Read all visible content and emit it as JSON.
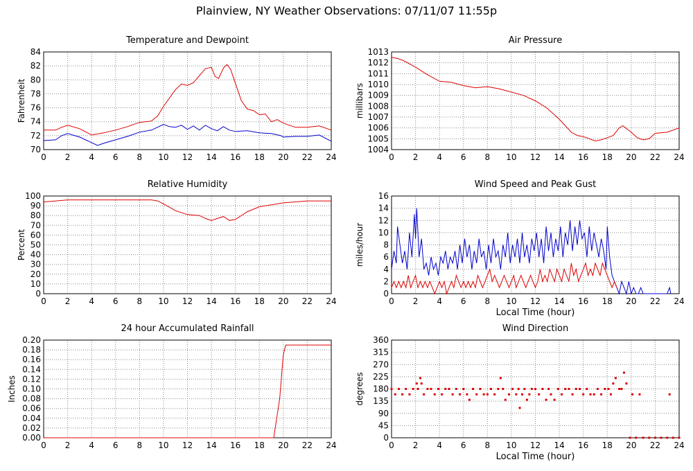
{
  "title": "Plainview, NY Weather Observations: 07/11/07 11:55p",
  "colors": {
    "red": "#dd0000",
    "blue": "#0000cc",
    "grid": "#888888",
    "frame": "#000000"
  },
  "chart_data": [
    {
      "id": "temp",
      "type": "line",
      "title": "Temperature and Dewpoint",
      "xlabel": "",
      "ylabel": "Fahrenheit",
      "xlim": [
        0,
        24
      ],
      "ylim": [
        70,
        84
      ],
      "xticks": [
        0,
        2,
        4,
        6,
        8,
        10,
        12,
        14,
        16,
        18,
        20,
        22,
        24
      ],
      "yticks": [
        70,
        72,
        74,
        76,
        78,
        80,
        82,
        84
      ],
      "grid": true,
      "series": [
        {
          "color": "red",
          "style": "line",
          "x": [
            0,
            1,
            1.5,
            2,
            3,
            4,
            5,
            6,
            7,
            8,
            9,
            9.5,
            10,
            11,
            11.5,
            12,
            12.5,
            13,
            13.5,
            14,
            14.3,
            14.6,
            15,
            15.3,
            15.6,
            16,
            16.5,
            17,
            17.5,
            18,
            18.5,
            19,
            19.5,
            20,
            21,
            22,
            23,
            24
          ],
          "y": [
            72.8,
            72.8,
            73.2,
            73.5,
            73.0,
            72.1,
            72.4,
            72.8,
            73.3,
            73.9,
            74.1,
            74.8,
            76.2,
            78.6,
            79.4,
            79.2,
            79.6,
            80.6,
            81.6,
            81.8,
            80.5,
            80.2,
            81.7,
            82.2,
            81.5,
            79.5,
            77.0,
            75.8,
            75.6,
            75.0,
            75.1,
            74.0,
            74.3,
            73.8,
            73.2,
            73.2,
            73.4,
            72.8
          ]
        },
        {
          "color": "blue",
          "style": "line",
          "x": [
            0,
            1,
            1.5,
            2,
            3,
            4,
            4.5,
            5,
            6,
            7,
            8,
            9,
            10,
            10.5,
            11,
            11.5,
            12,
            12.5,
            13,
            13.5,
            14,
            14.5,
            15,
            15.5,
            16,
            17,
            18,
            19,
            19.8,
            20,
            21,
            22,
            23,
            24
          ],
          "y": [
            71.3,
            71.4,
            72.0,
            72.3,
            71.8,
            71.0,
            70.6,
            70.9,
            71.4,
            71.9,
            72.5,
            72.8,
            73.6,
            73.3,
            73.2,
            73.5,
            72.9,
            73.4,
            72.8,
            73.5,
            73.0,
            72.7,
            73.3,
            72.8,
            72.6,
            72.7,
            72.4,
            72.3,
            72.0,
            71.8,
            71.9,
            71.9,
            72.1,
            71.2
          ]
        }
      ]
    },
    {
      "id": "pressure",
      "type": "line",
      "title": "Air Pressure",
      "xlabel": "",
      "ylabel": "millibars",
      "xlim": [
        0,
        24
      ],
      "ylim": [
        1004,
        1013
      ],
      "xticks": [
        0,
        2,
        4,
        6,
        8,
        10,
        12,
        14,
        16,
        18,
        20,
        22,
        24
      ],
      "yticks": [
        1004,
        1005,
        1006,
        1007,
        1008,
        1009,
        1010,
        1011,
        1012,
        1013
      ],
      "grid": true,
      "series": [
        {
          "color": "red",
          "style": "line",
          "x": [
            0,
            0.5,
            1,
            2,
            3,
            4,
            5,
            6,
            7,
            8,
            9,
            10,
            11,
            12,
            13,
            14,
            14.5,
            15,
            15.5,
            16,
            16.5,
            17,
            17.5,
            18,
            18.5,
            19,
            19.3,
            20,
            20.5,
            21,
            21.5,
            22,
            23,
            24
          ],
          "y": [
            1012.5,
            1012.4,
            1012.2,
            1011.6,
            1010.9,
            1010.3,
            1010.2,
            1009.9,
            1009.7,
            1009.8,
            1009.6,
            1009.3,
            1009.0,
            1008.5,
            1007.8,
            1006.8,
            1006.2,
            1005.6,
            1005.3,
            1005.2,
            1005.0,
            1004.8,
            1004.9,
            1005.1,
            1005.3,
            1006.0,
            1006.2,
            1005.6,
            1005.1,
            1004.9,
            1005.0,
            1005.5,
            1005.6,
            1006.0
          ]
        }
      ]
    },
    {
      "id": "humidity",
      "type": "line",
      "title": "Relative Humidity",
      "xlabel": "",
      "ylabel": "Percent",
      "xlim": [
        0,
        24
      ],
      "ylim": [
        0,
        100
      ],
      "xticks": [
        0,
        2,
        4,
        6,
        8,
        10,
        12,
        14,
        16,
        18,
        20,
        22,
        24
      ],
      "yticks": [
        0,
        10,
        20,
        30,
        40,
        50,
        60,
        70,
        80,
        90,
        100
      ],
      "grid": true,
      "series": [
        {
          "color": "red",
          "style": "line",
          "x": [
            0,
            1,
            2,
            4,
            6,
            8,
            9,
            9.5,
            10,
            11,
            12,
            13,
            13.5,
            14,
            14.5,
            15,
            15.5,
            16,
            17,
            18,
            19,
            20,
            22,
            24
          ],
          "y": [
            94,
            95,
            96,
            96,
            96,
            96,
            96,
            95,
            92,
            85,
            81,
            80,
            77,
            75,
            77,
            79,
            75,
            76,
            84,
            89,
            91,
            93,
            95,
            95
          ]
        }
      ]
    },
    {
      "id": "wind",
      "type": "line",
      "title": "Wind Speed and Peak Gust",
      "xlabel": "Local Time (hour)",
      "ylabel": "miles/hour",
      "xlim": [
        0,
        24
      ],
      "ylim": [
        0,
        16
      ],
      "xticks": [
        0,
        2,
        4,
        6,
        8,
        10,
        12,
        14,
        16,
        18,
        20,
        22,
        24
      ],
      "yticks": [
        0,
        2,
        4,
        6,
        8,
        10,
        12,
        14,
        16
      ],
      "grid": true,
      "series": [
        {
          "color": "blue",
          "style": "line",
          "x": [
            0,
            0.2,
            0.4,
            0.5,
            0.7,
            0.9,
            1.1,
            1.3,
            1.5,
            1.7,
            1.9,
            2.0,
            2.1,
            2.3,
            2.5,
            2.7,
            2.9,
            3.1,
            3.3,
            3.5,
            3.7,
            3.9,
            4.1,
            4.3,
            4.5,
            4.7,
            4.9,
            5.1,
            5.3,
            5.5,
            5.7,
            5.9,
            6.1,
            6.3,
            6.5,
            6.7,
            6.9,
            7.1,
            7.3,
            7.5,
            7.7,
            7.9,
            8.1,
            8.3,
            8.5,
            8.7,
            8.9,
            9.1,
            9.3,
            9.5,
            9.7,
            9.9,
            10.1,
            10.3,
            10.5,
            10.7,
            10.9,
            11.1,
            11.3,
            11.5,
            11.7,
            11.9,
            12.1,
            12.3,
            12.5,
            12.7,
            12.9,
            13.1,
            13.3,
            13.5,
            13.7,
            13.9,
            14.1,
            14.3,
            14.5,
            14.7,
            14.9,
            15.1,
            15.3,
            15.5,
            15.7,
            15.9,
            16.1,
            16.3,
            16.5,
            16.7,
            16.9,
            17.1,
            17.3,
            17.5,
            17.7,
            17.9,
            18.0,
            18.2,
            18.4,
            18.6,
            18.8,
            19.0,
            19.2,
            19.4,
            19.6,
            19.8,
            20.0,
            20.2,
            20.4,
            20.6,
            20.8,
            21.0,
            23.0,
            23.2,
            23.3
          ],
          "y": [
            4,
            7,
            5,
            11,
            8,
            5,
            7,
            4,
            10,
            6,
            13,
            9,
            14,
            6,
            9,
            4,
            5,
            3,
            6,
            4,
            5,
            3,
            6,
            5,
            7,
            4,
            6,
            5,
            7,
            4,
            8,
            5,
            9,
            6,
            8,
            4,
            7,
            5,
            9,
            6,
            7,
            4,
            8,
            5,
            9,
            6,
            7,
            4,
            8,
            6,
            10,
            5,
            8,
            6,
            9,
            5,
            10,
            6,
            8,
            5,
            9,
            7,
            10,
            6,
            9,
            5,
            11,
            7,
            10,
            6,
            9,
            7,
            11,
            6,
            10,
            8,
            12,
            7,
            11,
            8,
            12,
            9,
            10,
            6,
            11,
            7,
            10,
            8,
            6,
            9,
            7,
            4,
            11,
            6,
            3,
            2,
            1,
            0,
            2,
            1,
            0,
            2,
            0,
            1,
            0,
            0,
            1,
            0,
            0,
            1,
            0
          ]
        },
        {
          "color": "red",
          "style": "line",
          "x": [
            0,
            0.2,
            0.4,
            0.6,
            0.8,
            1.0,
            1.2,
            1.4,
            1.6,
            1.8,
            2.0,
            2.2,
            2.4,
            2.6,
            2.8,
            3.0,
            3.2,
            3.4,
            3.6,
            3.8,
            4.0,
            4.2,
            4.4,
            4.6,
            4.8,
            5.0,
            5.2,
            5.4,
            5.6,
            5.8,
            6.0,
            6.2,
            6.4,
            6.6,
            6.8,
            7.0,
            7.2,
            7.4,
            7.6,
            7.8,
            8.0,
            8.2,
            8.4,
            8.6,
            8.8,
            9.0,
            9.2,
            9.4,
            9.6,
            9.8,
            10.0,
            10.2,
            10.4,
            10.6,
            10.8,
            11.0,
            11.2,
            11.4,
            11.6,
            11.8,
            12.0,
            12.2,
            12.4,
            12.6,
            12.8,
            13.0,
            13.2,
            13.4,
            13.6,
            13.8,
            14.0,
            14.2,
            14.4,
            14.6,
            14.8,
            15.0,
            15.2,
            15.4,
            15.6,
            15.8,
            16.0,
            16.2,
            16.4,
            16.6,
            16.8,
            17.0,
            17.2,
            17.4,
            17.6,
            17.8,
            18.0,
            18.2,
            18.4,
            18.6,
            18.8
          ],
          "y": [
            1,
            2,
            1,
            2,
            1,
            2,
            1,
            3,
            1,
            2,
            3,
            1,
            2,
            1,
            2,
            1,
            2,
            1,
            0,
            1,
            2,
            1,
            2,
            0,
            1,
            2,
            1,
            3,
            2,
            1,
            2,
            1,
            2,
            1,
            2,
            1,
            3,
            2,
            1,
            2,
            3,
            4,
            2,
            3,
            2,
            1,
            2,
            3,
            2,
            1,
            2,
            3,
            1,
            2,
            3,
            2,
            1,
            2,
            3,
            2,
            1,
            2,
            4,
            2,
            3,
            2,
            4,
            3,
            2,
            4,
            3,
            2,
            4,
            3,
            2,
            5,
            3,
            4,
            2,
            3,
            4,
            5,
            3,
            4,
            3,
            5,
            4,
            3,
            5,
            4,
            3,
            2,
            1,
            2,
            1
          ]
        }
      ]
    },
    {
      "id": "rain",
      "type": "line",
      "title": "24 hour Accumulated Rainfall",
      "xlabel": "",
      "ylabel": "Inches",
      "xlim": [
        0,
        24
      ],
      "ylim": [
        0,
        0.2
      ],
      "xticks": [
        0,
        2,
        4,
        6,
        8,
        10,
        12,
        14,
        16,
        18,
        20,
        22,
        24
      ],
      "yticks": [
        "0.00",
        "0.02",
        "0.04",
        "0.06",
        "0.08",
        "0.10",
        "0.12",
        "0.14",
        "0.16",
        "0.18",
        "0.20"
      ],
      "grid": true,
      "series": [
        {
          "color": "red",
          "style": "line",
          "x": [
            0,
            19.2,
            19.7,
            20.0,
            20.2,
            24
          ],
          "y": [
            0,
            0,
            0.08,
            0.17,
            0.19,
            0.19
          ]
        }
      ]
    },
    {
      "id": "direction",
      "type": "scatter",
      "title": "Wind Direction",
      "xlabel": "Local Time (hour)",
      "ylabel": "degrees",
      "xlim": [
        0,
        24
      ],
      "ylim": [
        0,
        360
      ],
      "xticks": [
        0,
        2,
        4,
        6,
        8,
        10,
        12,
        14,
        16,
        18,
        20,
        22,
        24
      ],
      "yticks": [
        0,
        45,
        90,
        135,
        180,
        225,
        270,
        315,
        360
      ],
      "grid": true,
      "series": [
        {
          "color": "red",
          "style": "points",
          "x": [
            0.0,
            0.3,
            0.6,
            0.9,
            1.2,
            1.5,
            1.8,
            2.1,
            2.2,
            2.4,
            2.5,
            2.7,
            3.0,
            3.3,
            3.6,
            3.9,
            4.2,
            4.5,
            4.8,
            5.1,
            5.4,
            5.7,
            6.0,
            6.3,
            6.5,
            6.8,
            7.1,
            7.4,
            7.7,
            8.0,
            8.3,
            8.6,
            8.9,
            9.1,
            9.3,
            9.5,
            9.8,
            10.1,
            10.4,
            10.6,
            10.7,
            10.9,
            11.1,
            11.3,
            11.5,
            11.7,
            12.0,
            12.3,
            12.6,
            12.9,
            13.1,
            13.3,
            13.6,
            13.9,
            14.2,
            14.5,
            14.8,
            15.1,
            15.4,
            15.7,
            16.0,
            16.3,
            16.6,
            16.9,
            17.2,
            17.5,
            17.8,
            18.1,
            18.3,
            18.5,
            18.7,
            19.0,
            19.2,
            19.4,
            19.6,
            19.9,
            20.1,
            20.4,
            20.7,
            21.0,
            21.5,
            22.0,
            22.5,
            23.0,
            23.2,
            23.5,
            24.0
          ],
          "y": [
            180,
            160,
            180,
            160,
            180,
            160,
            180,
            200,
            180,
            220,
            200,
            160,
            180,
            180,
            160,
            180,
            160,
            180,
            180,
            160,
            180,
            160,
            180,
            160,
            140,
            180,
            160,
            180,
            160,
            160,
            180,
            160,
            180,
            220,
            180,
            140,
            160,
            180,
            160,
            180,
            110,
            160,
            180,
            140,
            160,
            180,
            180,
            160,
            180,
            140,
            180,
            160,
            140,
            180,
            160,
            180,
            180,
            160,
            180,
            180,
            160,
            180,
            160,
            160,
            180,
            160,
            180,
            180,
            160,
            200,
            220,
            180,
            180,
            240,
            200,
            0,
            160,
            0,
            160,
            0,
            0,
            0,
            0,
            0,
            160,
            0,
            0
          ]
        }
      ]
    }
  ]
}
